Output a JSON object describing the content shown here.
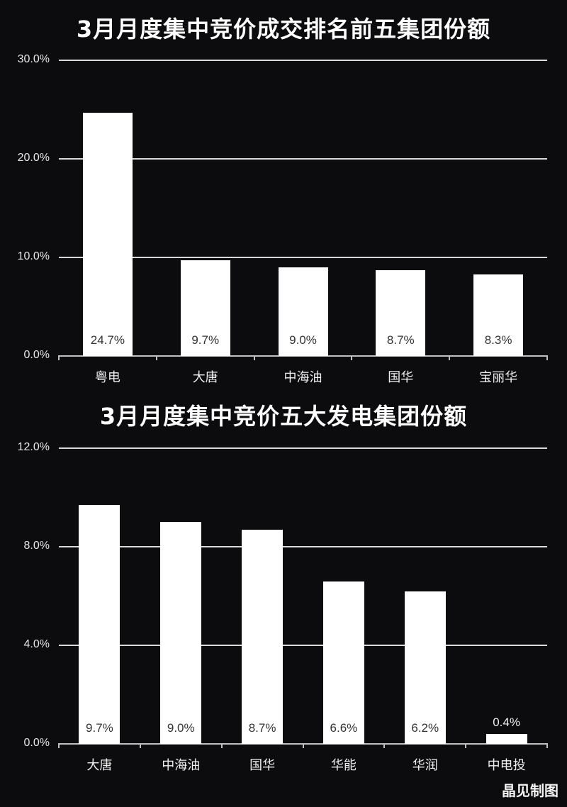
{
  "chart_data": [
    {
      "type": "bar",
      "title": "3月月度集中竞价成交排名前五集团份额",
      "categories": [
        "粤电",
        "大唐",
        "中海油",
        "国华",
        "宝丽华"
      ],
      "values": [
        24.7,
        9.7,
        9.0,
        8.7,
        8.3
      ],
      "value_labels": [
        "24.7%",
        "9.7%",
        "9.0%",
        "8.7%",
        "8.3%"
      ],
      "xlabel": "",
      "ylabel": "",
      "ylim": [
        0,
        30
      ],
      "yticks": [
        "0.0%",
        "10.0%",
        "20.0%",
        "30.0%"
      ],
      "grid": true,
      "legend": "none",
      "colors": {
        "bar": "#ffffff",
        "background": "#0c0b0d",
        "grid": "#d8d8d8"
      }
    },
    {
      "type": "bar",
      "title": "3月月度集中竞价五大发电集团份额",
      "categories": [
        "大唐",
        "中海油",
        "国华",
        "华能",
        "华润",
        "中电投"
      ],
      "values": [
        9.7,
        9.0,
        8.7,
        6.6,
        6.2,
        0.4
      ],
      "value_labels": [
        "9.7%",
        "9.0%",
        "8.7%",
        "6.6%",
        "6.2%",
        "0.4%"
      ],
      "xlabel": "",
      "ylabel": "",
      "ylim": [
        0,
        12
      ],
      "yticks": [
        "0.0%",
        "4.0%",
        "8.0%",
        "12.0%"
      ],
      "grid": true,
      "legend": "none",
      "colors": {
        "bar": "#ffffff",
        "background": "#0c0b0d",
        "grid": "#d8d8d8"
      }
    }
  ],
  "credit": "晶见制图"
}
